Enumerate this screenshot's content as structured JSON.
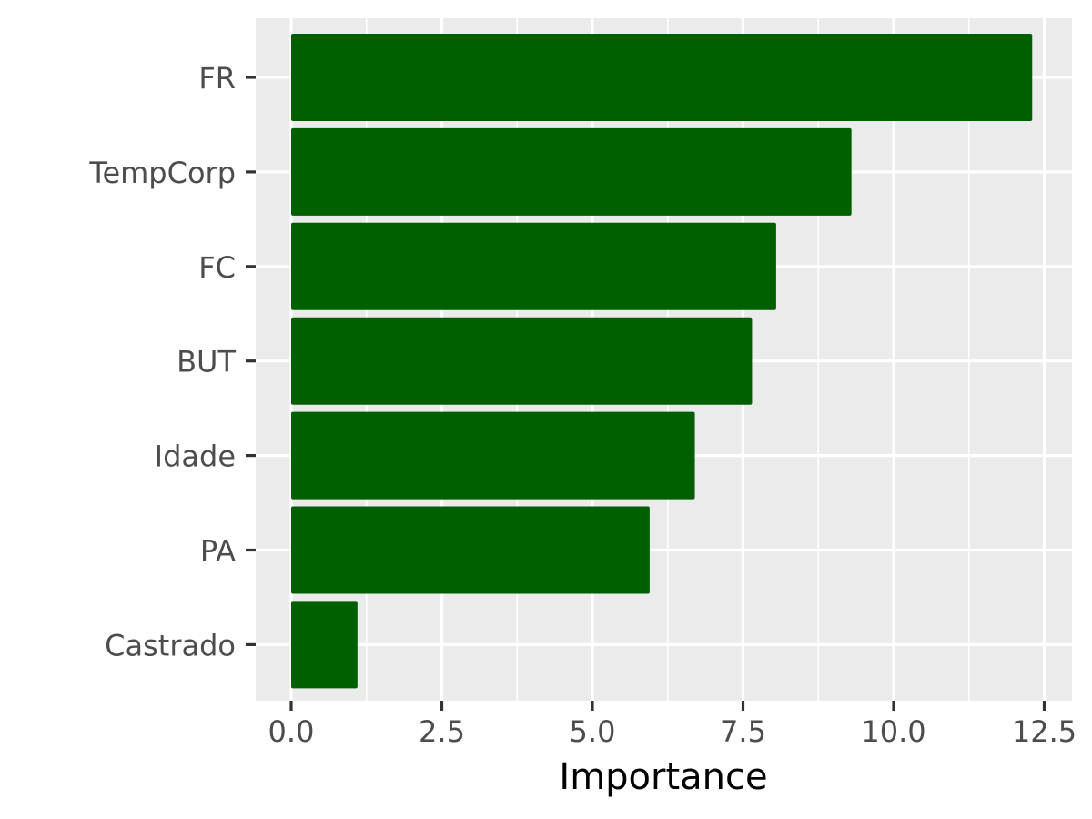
{
  "chart_data": {
    "type": "bar",
    "orientation": "horizontal",
    "categories": [
      "FR",
      "TempCorp",
      "FC",
      "BUT",
      "Idade",
      "PA",
      "Castrado"
    ],
    "values": [
      12.3,
      9.3,
      8.05,
      7.65,
      6.7,
      5.95,
      1.1
    ],
    "x_ticks": [
      "0.0",
      "2.5",
      "5.0",
      "7.5",
      "10.0",
      "12.5"
    ],
    "x_tick_values": [
      0,
      2.5,
      5,
      7.5,
      10,
      12.5
    ],
    "xlim": [
      -0.6,
      12.9
    ],
    "xlabel": "Importance",
    "ylabel": "",
    "title": "",
    "grid": true,
    "legend": "none",
    "colors": {
      "bar": "#006000",
      "panel": "#EBEBEB",
      "grid": "#FFFFFF",
      "tick_label": "#4D4D4D",
      "tick_mark": "#333333",
      "axis_title": "#000000"
    }
  }
}
